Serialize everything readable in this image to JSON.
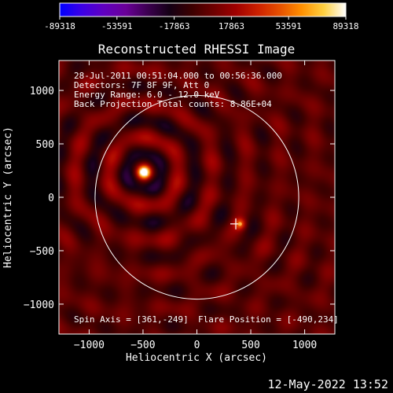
{
  "chart_data": {
    "type": "heatmap",
    "title": "Reconstructed RHESSI Image",
    "xlabel": "Heliocentric X (arcsec)",
    "ylabel": "Heliocentric Y (arcsec)",
    "xlim": [
      -1280,
      1280
    ],
    "ylim": [
      -1280,
      1280
    ],
    "xticks": [
      -1000,
      -500,
      0,
      500,
      1000
    ],
    "yticks": [
      -1000,
      -500,
      0,
      500,
      1000
    ],
    "colorbar": {
      "range": [
        -89318,
        89318
      ],
      "ticks": [
        -89318,
        -53591,
        -17863,
        17863,
        53591,
        89318
      ],
      "tick_labels": [
        "-89318",
        "-53591",
        "-17863",
        "17863",
        "53591",
        "89318"
      ],
      "colormap": [
        "#0000ff",
        "#3c00e6",
        "#6000c0",
        "#6a0098",
        "#3c0050",
        "#140014",
        "#3c0000",
        "#6e0000",
        "#a00000",
        "#cc2000",
        "#e65000",
        "#ff9000",
        "#ffd040",
        "#ffffff"
      ]
    },
    "annotations": [
      "28-Jul-2011 00:51:04.000 to 00:56:36.000",
      "Detectors: 7F 8F 9F, Att 0",
      "Energy Range: 6.0 - 12.0 keV",
      "Back Projection",
      "Total counts: 8.86E+04"
    ],
    "spin_axis": "Spin Axis = [361,-249]",
    "flare_position": "Flare Position = [-490,234]",
    "sources": [
      {
        "x": -490,
        "y": 234,
        "intensity": 89318
      },
      {
        "x": 400,
        "y": -250,
        "intensity": 45000
      }
    ],
    "solar_limb_radius": 945,
    "cross_marker": {
      "x": 361,
      "y": -249
    },
    "grid": false
  },
  "footer": {
    "timestamp": "12-May-2022 13:52"
  }
}
